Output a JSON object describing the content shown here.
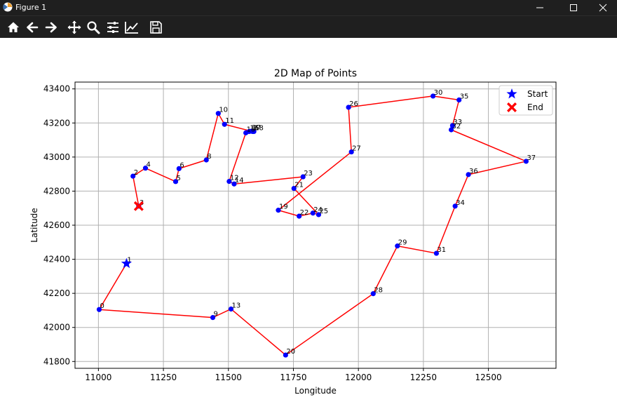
{
  "window": {
    "title": "Figure 1"
  },
  "toolbar": {
    "items": [
      "home-icon",
      "back-arrow-icon",
      "forward-arrow-icon",
      "pan-icon",
      "zoom-icon",
      "subplots-config-icon",
      "axes-edit-icon",
      "save-icon"
    ]
  },
  "chart_data": {
    "type": "line",
    "title": "2D Map of Points",
    "xlabel": "Longitude",
    "ylabel": "Latitude",
    "xlim": [
      10910,
      12760
    ],
    "ylim": [
      41760,
      43440
    ],
    "xticks": [
      11000,
      11250,
      11500,
      11750,
      12000,
      12250,
      12500
    ],
    "yticks": [
      41800,
      42000,
      42200,
      42400,
      42600,
      42800,
      43000,
      43200,
      43400
    ],
    "grid": true,
    "legend_position": "upper right",
    "colors": {
      "route": "#ff0000",
      "points": "#0000ff",
      "start": "#0000ff",
      "end": "#ff0000"
    },
    "points": [
      {
        "label": "0",
        "x": 11003,
        "y": 42105
      },
      {
        "label": "1",
        "x": 11108,
        "y": 42375
      },
      {
        "label": "2",
        "x": 11133,
        "y": 42888
      },
      {
        "label": "3",
        "x": 11155,
        "y": 42712
      },
      {
        "label": "4",
        "x": 11181,
        "y": 42935
      },
      {
        "label": "5",
        "x": 11297,
        "y": 42856
      },
      {
        "label": "6",
        "x": 11310,
        "y": 42932
      },
      {
        "label": "7",
        "x": 11593,
        "y": 43150
      },
      {
        "label": "8",
        "x": 11415,
        "y": 42983
      },
      {
        "label": "9",
        "x": 11440,
        "y": 42058
      },
      {
        "label": "10",
        "x": 11461,
        "y": 43256
      },
      {
        "label": "11",
        "x": 11485,
        "y": 43192
      },
      {
        "label": "12",
        "x": 11503,
        "y": 42857
      },
      {
        "label": "13",
        "x": 11510,
        "y": 42108
      },
      {
        "label": "14",
        "x": 11522,
        "y": 42842
      },
      {
        "label": "15",
        "x": 11567,
        "y": 43142
      },
      {
        "label": "16",
        "x": 11580,
        "y": 43150
      },
      {
        "label": "17",
        "x": 11588,
        "y": 43152
      },
      {
        "label": "18",
        "x": 11598,
        "y": 43150
      },
      {
        "label": "19",
        "x": 11692,
        "y": 42688
      },
      {
        "label": "20",
        "x": 11720,
        "y": 41838
      },
      {
        "label": "21",
        "x": 11752,
        "y": 42816
      },
      {
        "label": "22",
        "x": 11772,
        "y": 42653
      },
      {
        "label": "23",
        "x": 11787,
        "y": 42884
      },
      {
        "label": "24",
        "x": 11825,
        "y": 42671
      },
      {
        "label": "25",
        "x": 11847,
        "y": 42662
      },
      {
        "label": "26",
        "x": 11962,
        "y": 43292
      },
      {
        "label": "27",
        "x": 11973,
        "y": 43030
      },
      {
        "label": "28",
        "x": 12057,
        "y": 42198
      },
      {
        "label": "29",
        "x": 12150,
        "y": 42478
      },
      {
        "label": "30",
        "x": 12287,
        "y": 43358
      },
      {
        "label": "31",
        "x": 12300,
        "y": 42435
      },
      {
        "label": "32",
        "x": 12357,
        "y": 43160
      },
      {
        "label": "33",
        "x": 12362,
        "y": 43185
      },
      {
        "label": "34",
        "x": 12372,
        "y": 42712
      },
      {
        "label": "35",
        "x": 12387,
        "y": 43335
      },
      {
        "label": "36",
        "x": 12423,
        "y": 42897
      },
      {
        "label": "37",
        "x": 12645,
        "y": 42975
      }
    ],
    "route": [
      "1",
      "0",
      "9",
      "13",
      "20",
      "28",
      "29",
      "31",
      "34",
      "36",
      "37",
      "32",
      "33",
      "35",
      "30",
      "26",
      "27",
      "19",
      "22",
      "24",
      "25",
      "21",
      "23",
      "14",
      "12",
      "15",
      "16",
      "17",
      "18",
      "7",
      "11",
      "10",
      "8",
      "6",
      "5",
      "4",
      "2",
      "3"
    ],
    "series": [
      {
        "name": "Start",
        "marker": "star",
        "x": [
          11108
        ],
        "y": [
          42375
        ]
      },
      {
        "name": "End",
        "marker": "x",
        "x": [
          11155
        ],
        "y": [
          42712
        ]
      }
    ]
  }
}
